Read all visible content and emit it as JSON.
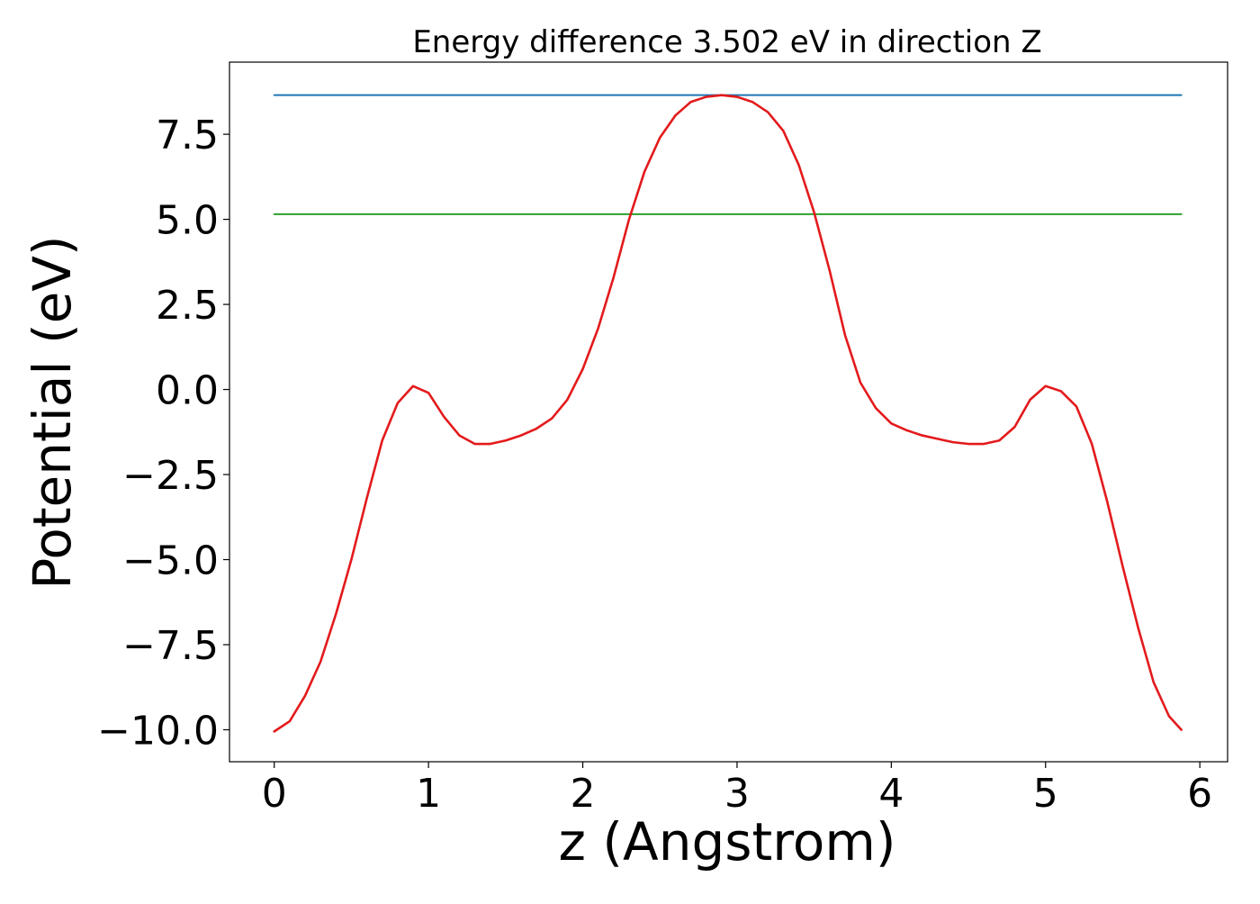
{
  "chart_data": {
    "type": "line",
    "title": "Energy difference 3.502 eV in direction Z",
    "xlabel": "z (Angstrom)",
    "ylabel": "Potential (eV)",
    "xlim": [
      -0.29,
      6.18
    ],
    "ylim": [
      -10.94,
      9.62
    ],
    "xticks": [
      0,
      1,
      2,
      3,
      4,
      5,
      6
    ],
    "xtick_labels": [
      "0",
      "1",
      "2",
      "3",
      "4",
      "5",
      "6"
    ],
    "yticks": [
      -10.0,
      -7.5,
      -5.0,
      -2.5,
      0.0,
      2.5,
      5.0,
      7.5
    ],
    "ytick_labels": [
      "−10.0",
      "−7.5",
      "−5.0",
      "−2.5",
      "0.0",
      "2.5",
      "5.0",
      "7.5"
    ],
    "grid": false,
    "series": [
      {
        "color": "#e31a1c",
        "x": [
          0,
          0.1,
          0.2,
          0.3,
          0.4,
          0.5,
          0.6,
          0.7,
          0.8,
          0.9,
          1.0,
          1.1,
          1.2,
          1.3,
          1.4,
          1.5,
          1.6,
          1.7,
          1.8,
          1.9,
          2.0,
          2.1,
          2.2,
          2.3,
          2.4,
          2.5,
          2.6,
          2.7,
          2.8,
          2.9,
          3.0,
          3.1,
          3.2,
          3.3,
          3.4,
          3.5,
          3.6,
          3.7,
          3.8,
          3.9,
          4.0,
          4.1,
          4.2,
          4.3,
          4.4,
          4.5,
          4.6,
          4.7,
          4.8,
          4.9,
          5.0,
          5.1,
          5.2,
          5.3,
          5.4,
          5.5,
          5.6,
          5.7,
          5.8,
          5.88
        ],
        "values": [
          -10.05,
          -9.75,
          -9.0,
          -8.0,
          -6.6,
          -5.0,
          -3.2,
          -1.5,
          -0.4,
          0.1,
          -0.1,
          -0.8,
          -1.35,
          -1.6,
          -1.6,
          -1.5,
          -1.35,
          -1.15,
          -0.85,
          -0.3,
          0.6,
          1.8,
          3.3,
          5.0,
          6.4,
          7.4,
          8.05,
          8.45,
          8.6,
          8.65,
          8.6,
          8.45,
          8.15,
          7.6,
          6.6,
          5.2,
          3.5,
          1.6,
          0.2,
          -0.55,
          -1.0,
          -1.2,
          -1.35,
          -1.45,
          -1.55,
          -1.6,
          -1.6,
          -1.5,
          -1.1,
          -0.3,
          0.1,
          -0.05,
          -0.5,
          -1.6,
          -3.3,
          -5.2,
          -7.0,
          -8.6,
          -9.6,
          -10.0
        ]
      },
      {
        "color": "#1f77b4",
        "x": [
          0,
          5.88
        ],
        "values": [
          8.65,
          8.65
        ]
      },
      {
        "color": "#2ca02c",
        "x": [
          0,
          5.88
        ],
        "values": [
          5.15,
          5.15
        ]
      }
    ]
  }
}
